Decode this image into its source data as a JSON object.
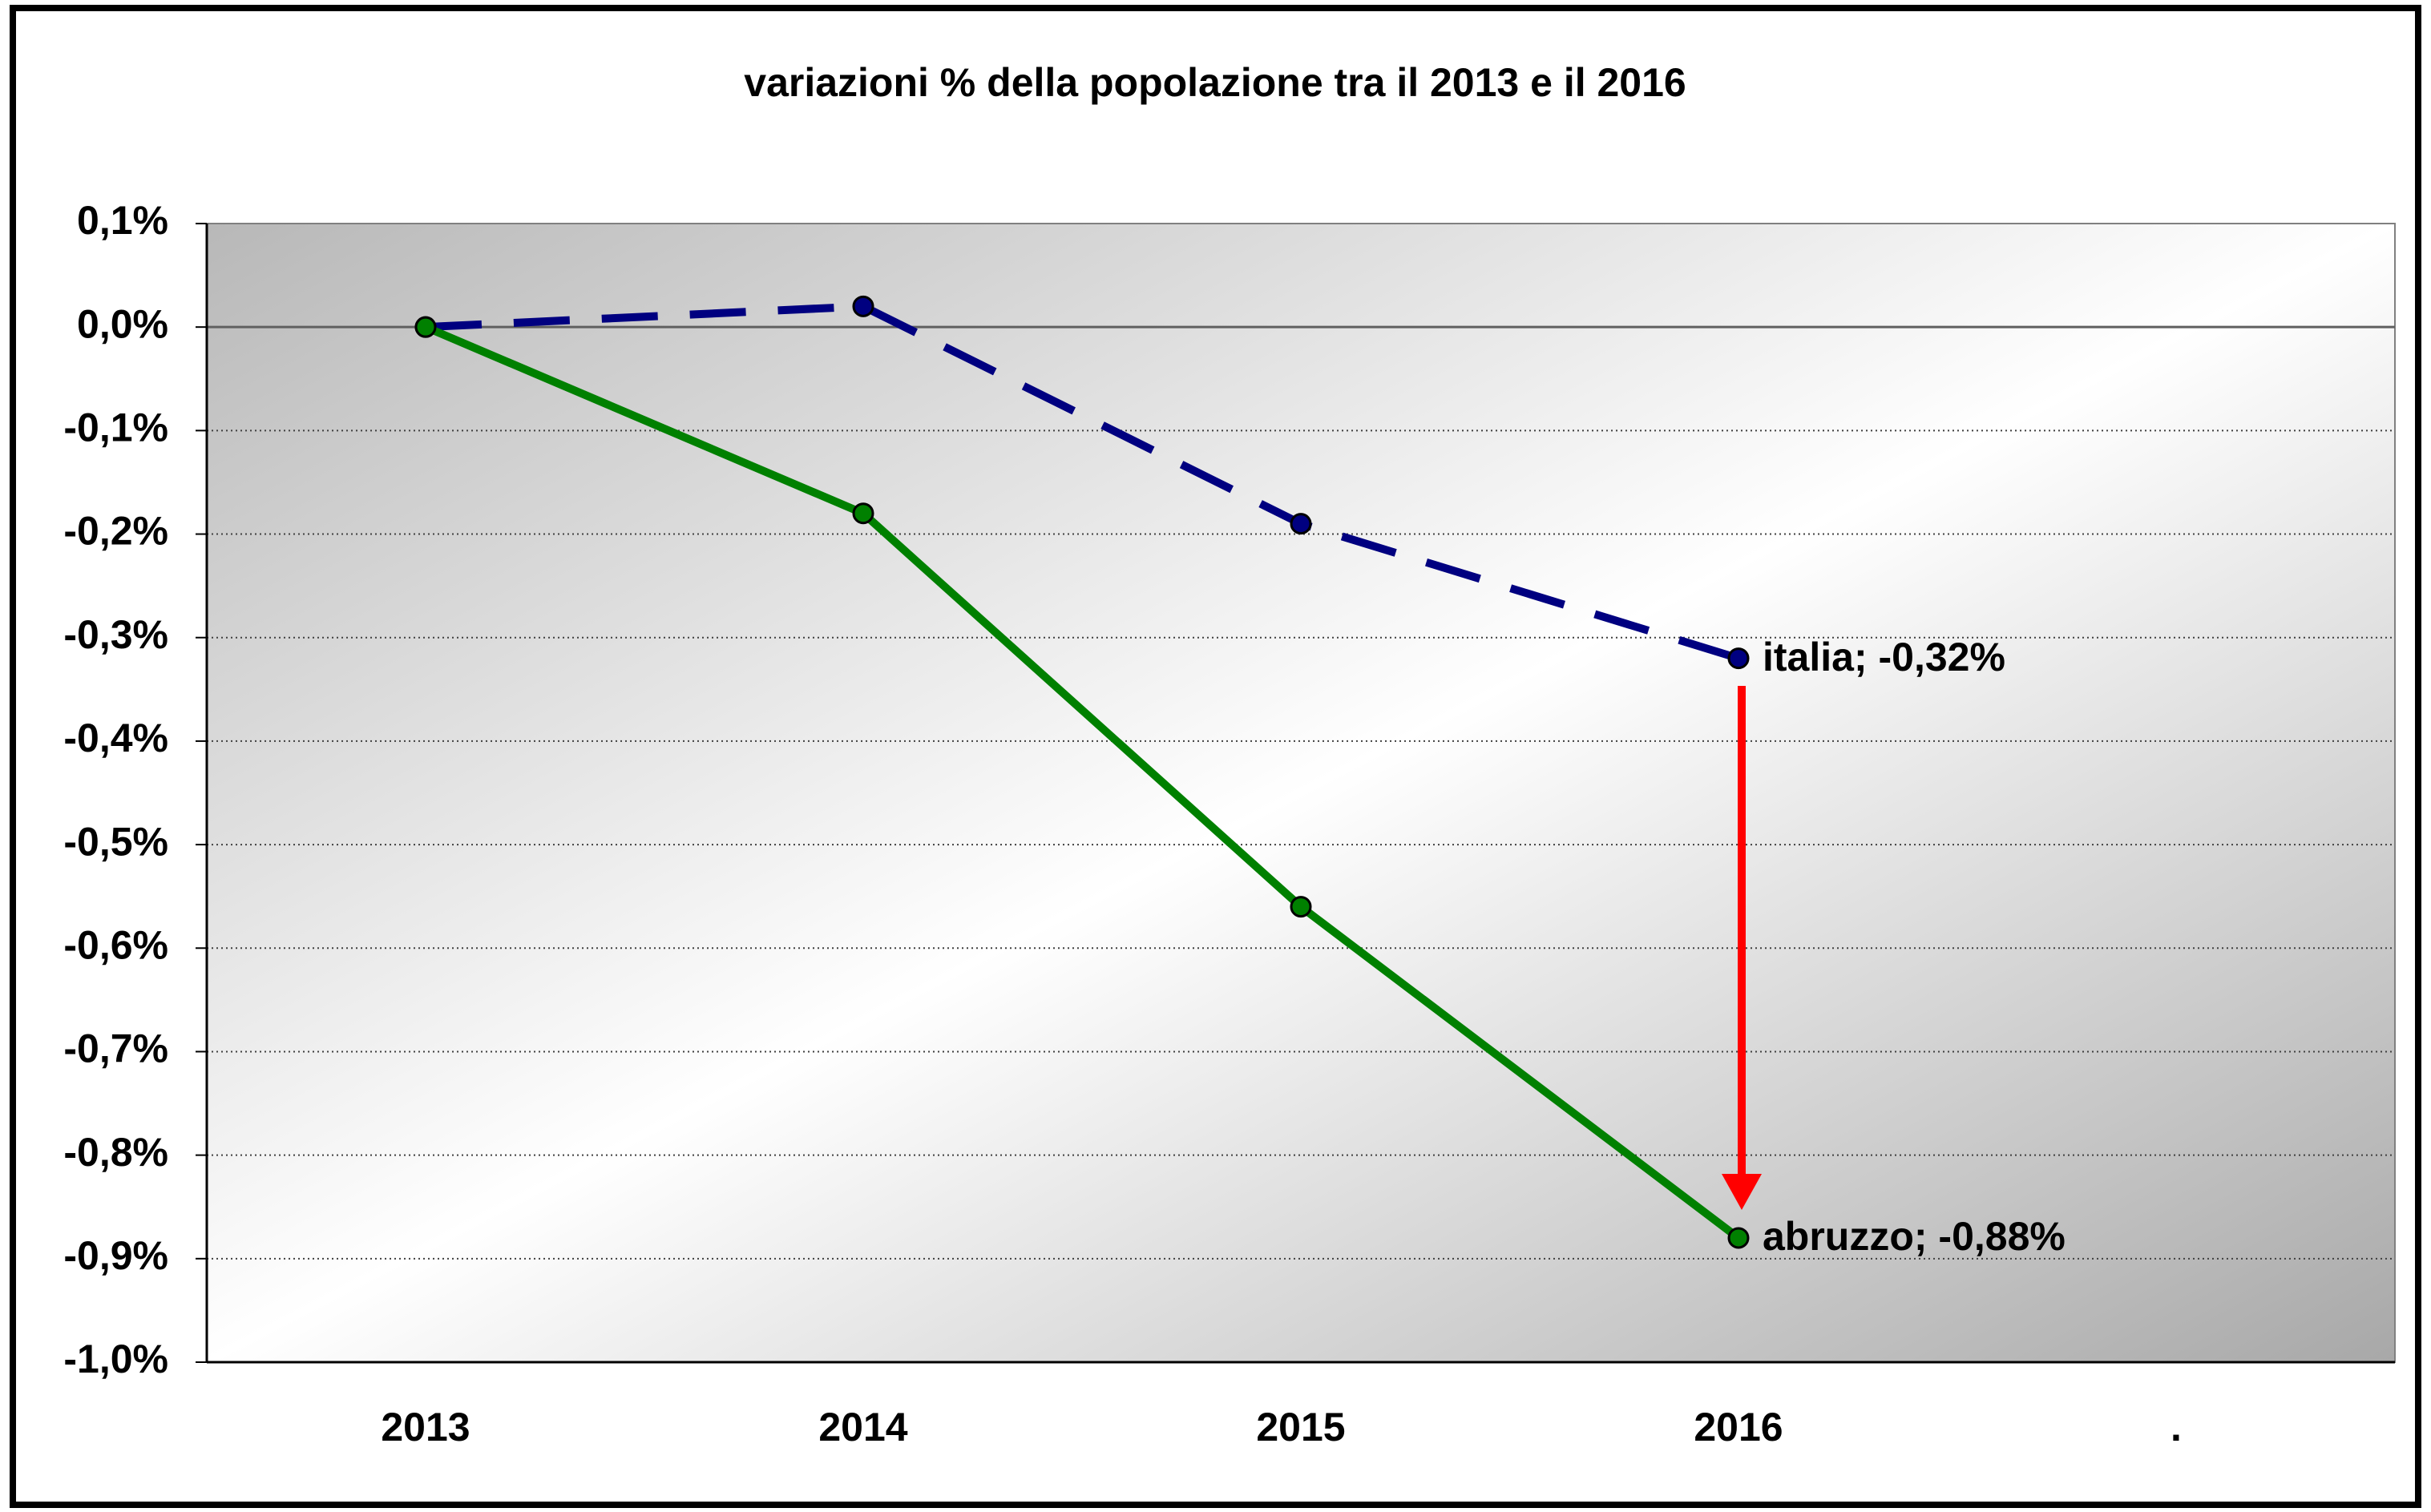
{
  "chart_data": {
    "type": "line",
    "title": "variazioni % della popolazione tra il 2013 e il 2016",
    "categories": [
      "2013",
      "2014",
      "2015",
      "2016",
      "."
    ],
    "series": [
      {
        "name": "italia",
        "color": "#000080",
        "dash": true,
        "values": [
          0,
          0.02,
          -0.19,
          -0.32,
          null
        ],
        "value_labels": [
          null,
          null,
          null,
          "italia; -0,32%",
          null
        ]
      },
      {
        "name": "abruzzo",
        "color": "#008000",
        "dash": false,
        "values": [
          0,
          -0.18,
          -0.56,
          -0.88,
          null
        ],
        "value_labels": [
          null,
          null,
          null,
          "abruzzo; -0,88%",
          null
        ]
      }
    ],
    "ylim": [
      -1.0,
      0.1
    ],
    "yticks": [
      {
        "value": 0.1,
        "label": "0,1%"
      },
      {
        "value": 0,
        "label": "0,0%"
      },
      {
        "value": -0.1,
        "label": "-0,1%"
      },
      {
        "value": -0.2,
        "label": "-0,2%"
      },
      {
        "value": -0.3,
        "label": "-0,3%"
      },
      {
        "value": -0.4,
        "label": "-0,4%"
      },
      {
        "value": -0.5,
        "label": "-0,5%"
      },
      {
        "value": -0.6,
        "label": "-0,6%"
      },
      {
        "value": -0.7,
        "label": "-0,7%"
      },
      {
        "value": -0.8,
        "label": "-0,8%"
      },
      {
        "value": -0.9,
        "label": "-0,9%"
      },
      {
        "value": -1.0,
        "label": "-1,0%"
      }
    ],
    "grid": true
  }
}
